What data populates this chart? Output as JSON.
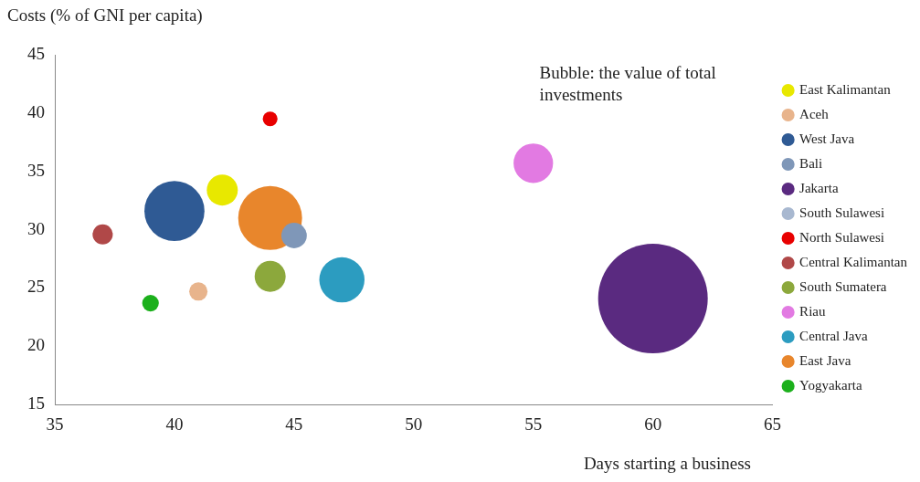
{
  "chart_data": {
    "type": "bubble",
    "xlabel": "Days starting a business",
    "ylabel": "Costs (% of GNI per capita)",
    "annotations": [
      "Bubble: the value of total investments"
    ],
    "xlim": [
      35,
      65
    ],
    "xticks": [
      35,
      40,
      45,
      50,
      55,
      60,
      65
    ],
    "ylim": [
      15,
      45
    ],
    "yticks": [
      15,
      20,
      25,
      30,
      35,
      40,
      45
    ],
    "grid": false,
    "legend": "right",
    "marker": "circle",
    "series": [
      {
        "name": "East Kalimantan",
        "color": "#e8e800",
        "x": [
          42
        ],
        "values": [
          33.4
        ],
        "sizes": [
          0.08
        ]
      },
      {
        "name": "Aceh",
        "color": "#e8b48c",
        "x": [
          41
        ],
        "values": [
          24.7
        ],
        "sizes": [
          0.028
        ]
      },
      {
        "name": "West Java",
        "color": "#2f5a94",
        "x": [
          40
        ],
        "values": [
          31.6
        ],
        "sizes": [
          0.3
        ]
      },
      {
        "name": "Bali",
        "color": "#7f97b8",
        "x": [
          45
        ],
        "values": [
          29.5
        ],
        "sizes": [
          0.054
        ]
      },
      {
        "name": "Jakarta",
        "color": "#5a2a80",
        "x": [
          60
        ],
        "values": [
          24.1
        ],
        "sizes": [
          1
        ]
      },
      {
        "name": "South Sulawesi",
        "color": "#a8b8d0",
        "x": [
          null
        ],
        "values": [
          null
        ],
        "sizes": [
          null
        ]
      },
      {
        "name": "North Sulawesi",
        "color": "#e80000",
        "x": [
          44
        ],
        "values": [
          39.5
        ],
        "sizes": [
          0.018
        ]
      },
      {
        "name": "Central Kalimantan",
        "color": "#b04848",
        "x": [
          37
        ],
        "values": [
          29.6
        ],
        "sizes": [
          0.034
        ]
      },
      {
        "name": "South Sumatera",
        "color": "#8ca83c",
        "x": [
          44
        ],
        "values": [
          26
        ],
        "sizes": [
          0.08
        ]
      },
      {
        "name": "Riau",
        "color": "#e27ae2",
        "x": [
          55
        ],
        "values": [
          35.7
        ],
        "sizes": [
          0.13
        ]
      },
      {
        "name": "Central Java",
        "color": "#2c9cc0",
        "x": [
          47
        ],
        "values": [
          25.7
        ],
        "sizes": [
          0.17
        ]
      },
      {
        "name": "East Java",
        "color": "#e8862c",
        "x": [
          44
        ],
        "values": [
          31
        ],
        "sizes": [
          0.34
        ]
      },
      {
        "name": "Yogyakarta",
        "color": "#1cb01c",
        "x": [
          39
        ],
        "values": [
          23.7
        ],
        "sizes": [
          0.023
        ]
      }
    ]
  }
}
